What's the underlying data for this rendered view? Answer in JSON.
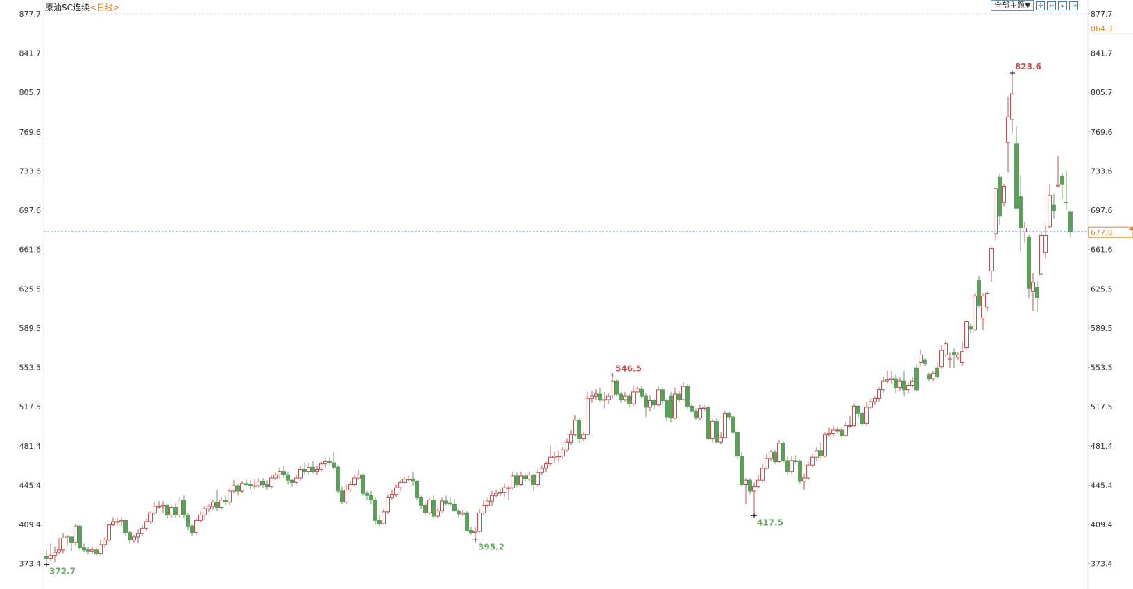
{
  "header": {
    "title": "原油SC连续",
    "period": "<日线>",
    "theme_button": "全部主题▼",
    "toolbar_icons": [
      "crosshair-icon",
      "zoom-range-icon",
      "play-step-icon",
      "jump-end-icon"
    ]
  },
  "colors": {
    "up": "#c0504d",
    "down": "#5b9f5b",
    "up_label": "#c0504d",
    "down_label": "#6aa86a",
    "accent_orange": "#e0892a",
    "current_line": "#3a7ab8"
  },
  "chart_data": {
    "type": "candlestick",
    "ylim": [
      373.4,
      877.7
    ],
    "yticks": [
      877.7,
      841.7,
      805.7,
      769.6,
      733.6,
      697.6,
      661.6,
      625.5,
      589.5,
      553.5,
      517.5,
      481.4,
      445.4,
      409.4,
      373.4
    ],
    "right_marker": "864.3",
    "current_price": 677.8,
    "current_price_label": "677.8",
    "extreme_labels": [
      {
        "index": 1,
        "value": "372.7",
        "kind": "low"
      },
      {
        "index": 104,
        "value": "395.2",
        "kind": "low"
      },
      {
        "index": 137,
        "value": "546.5",
        "kind": "high"
      },
      {
        "index": 171,
        "value": "417.5",
        "kind": "low"
      },
      {
        "index": 233,
        "value": "823.6",
        "kind": "high"
      }
    ],
    "candles_ohlc": [
      [
        380,
        386,
        372.7,
        378
      ],
      [
        378,
        392,
        376,
        381
      ],
      [
        381,
        389,
        375,
        384
      ],
      [
        384,
        397,
        382,
        386
      ],
      [
        386,
        401,
        383,
        397
      ],
      [
        397,
        400,
        390,
        398
      ],
      [
        398,
        399,
        385,
        393
      ],
      [
        393,
        410,
        390,
        408
      ],
      [
        408,
        409,
        386,
        388
      ],
      [
        388,
        392,
        384,
        386
      ],
      [
        386,
        389,
        382,
        385
      ],
      [
        385,
        389,
        383,
        386
      ],
      [
        386,
        388,
        381,
        383
      ],
      [
        383,
        395,
        381,
        391
      ],
      [
        391,
        398,
        388,
        395
      ],
      [
        395,
        410,
        394,
        409
      ],
      [
        409,
        416,
        408,
        412
      ],
      [
        412,
        416,
        409,
        412
      ],
      [
        412,
        416,
        408,
        413
      ],
      [
        413,
        414,
        399,
        402
      ],
      [
        402,
        404,
        392,
        395
      ],
      [
        395,
        400,
        393,
        398
      ],
      [
        398,
        405,
        392,
        401
      ],
      [
        401,
        409,
        399,
        406
      ],
      [
        406,
        415,
        404,
        412
      ],
      [
        412,
        422,
        410,
        420
      ],
      [
        420,
        430,
        418,
        426
      ],
      [
        426,
        431,
        424,
        426
      ],
      [
        426,
        431,
        420,
        427
      ],
      [
        427,
        428,
        415,
        418
      ],
      [
        418,
        427,
        416,
        425
      ],
      [
        425,
        429,
        416,
        418
      ],
      [
        418,
        434,
        416,
        432
      ],
      [
        432,
        436,
        415,
        418
      ],
      [
        418,
        420,
        404,
        408
      ],
      [
        408,
        410,
        399,
        402
      ],
      [
        402,
        415,
        400,
        413
      ],
      [
        413,
        421,
        411,
        418
      ],
      [
        418,
        426,
        414,
        424
      ],
      [
        424,
        428,
        421,
        426
      ],
      [
        426,
        432,
        423,
        430
      ],
      [
        430,
        441,
        422,
        425
      ],
      [
        425,
        434,
        423,
        432
      ],
      [
        432,
        436,
        427,
        430
      ],
      [
        430,
        442,
        427,
        440
      ],
      [
        440,
        450,
        438,
        445
      ],
      [
        445,
        447,
        436,
        440
      ],
      [
        440,
        449,
        438,
        447
      ],
      [
        447,
        451,
        444,
        446
      ],
      [
        446,
        450,
        441,
        445
      ],
      [
        445,
        451,
        442,
        445
      ],
      [
        445,
        452,
        443,
        449
      ],
      [
        449,
        452,
        443,
        446
      ],
      [
        446,
        450,
        441,
        444
      ],
      [
        444,
        455,
        442,
        452
      ],
      [
        452,
        457,
        450,
        455
      ],
      [
        455,
        462,
        451,
        458
      ],
      [
        458,
        463,
        452,
        455
      ],
      [
        455,
        457,
        446,
        450
      ],
      [
        450,
        451,
        444,
        448
      ],
      [
        448,
        455,
        446,
        452
      ],
      [
        452,
        463,
        450,
        460
      ],
      [
        460,
        466,
        455,
        458
      ],
      [
        458,
        466,
        455,
        462
      ],
      [
        462,
        468,
        456,
        458
      ],
      [
        458,
        463,
        455,
        460
      ],
      [
        460,
        468,
        458,
        465
      ],
      [
        465,
        470,
        462,
        467
      ],
      [
        467,
        471,
        464,
        466
      ],
      [
        466,
        476,
        460,
        462
      ],
      [
        462,
        464,
        438,
        440
      ],
      [
        440,
        444,
        428,
        430
      ],
      [
        430,
        446,
        428,
        441
      ],
      [
        441,
        449,
        439,
        446
      ],
      [
        446,
        455,
        444,
        452
      ],
      [
        452,
        460,
        450,
        455
      ],
      [
        455,
        456,
        436,
        438
      ],
      [
        438,
        440,
        432,
        436
      ],
      [
        436,
        440,
        428,
        432
      ],
      [
        432,
        434,
        409,
        413
      ],
      [
        413,
        418,
        408,
        410
      ],
      [
        410,
        424,
        409,
        421
      ],
      [
        421,
        437,
        419,
        434
      ],
      [
        434,
        441,
        432,
        437
      ],
      [
        437,
        446,
        435,
        443
      ],
      [
        443,
        450,
        440,
        448
      ],
      [
        448,
        453,
        446,
        451
      ],
      [
        451,
        454,
        449,
        451
      ],
      [
        451,
        458,
        445,
        449
      ],
      [
        449,
        450,
        432,
        434
      ],
      [
        434,
        436,
        424,
        427
      ],
      [
        427,
        429,
        418,
        420
      ],
      [
        420,
        434,
        418,
        432
      ],
      [
        432,
        436,
        415,
        417
      ],
      [
        417,
        425,
        415,
        422
      ],
      [
        422,
        434,
        420,
        431
      ],
      [
        431,
        436,
        427,
        429
      ],
      [
        429,
        434,
        426,
        428
      ],
      [
        428,
        433,
        421,
        422
      ],
      [
        422,
        424,
        416,
        419
      ],
      [
        419,
        423,
        417,
        420
      ],
      [
        420,
        422,
        403,
        404
      ],
      [
        404,
        407,
        400,
        402
      ],
      [
        402,
        407,
        395.2,
        403
      ],
      [
        403,
        424,
        402,
        420
      ],
      [
        420,
        432,
        418,
        427
      ],
      [
        427,
        434,
        425,
        431
      ],
      [
        431,
        440,
        426,
        436
      ],
      [
        436,
        441,
        434,
        438
      ],
      [
        438,
        441,
        436,
        439
      ],
      [
        439,
        447,
        435,
        443
      ],
      [
        443,
        445,
        432,
        443
      ],
      [
        443,
        458,
        441,
        454
      ],
      [
        454,
        457,
        444,
        446
      ],
      [
        446,
        458,
        445,
        454
      ],
      [
        454,
        456,
        449,
        451
      ],
      [
        451,
        458,
        449,
        455
      ],
      [
        455,
        456,
        440,
        446
      ],
      [
        446,
        460,
        444,
        457
      ],
      [
        457,
        464,
        455,
        461
      ],
      [
        461,
        467,
        457,
        465
      ],
      [
        465,
        482,
        463,
        471
      ],
      [
        471,
        476,
        466,
        472
      ],
      [
        472,
        477,
        467,
        472
      ],
      [
        472,
        481,
        470,
        478
      ],
      [
        478,
        488,
        476,
        485
      ],
      [
        485,
        496,
        482,
        492
      ],
      [
        492,
        510,
        490,
        505
      ],
      [
        505,
        507,
        484,
        488
      ],
      [
        488,
        495,
        486,
        492
      ],
      [
        492,
        531,
        491,
        525
      ],
      [
        525,
        532,
        521,
        527
      ],
      [
        527,
        534,
        524,
        529
      ],
      [
        529,
        535,
        522,
        524
      ],
      [
        524,
        531,
        516,
        524
      ],
      [
        524,
        530,
        520,
        527
      ],
      [
        528,
        546.5,
        525,
        541
      ],
      [
        541,
        543,
        527,
        529
      ],
      [
        529,
        531,
        521,
        524
      ],
      [
        524,
        531,
        522,
        527
      ],
      [
        527,
        529,
        517,
        520
      ],
      [
        520,
        537,
        518,
        531
      ],
      [
        531,
        536,
        530,
        534
      ],
      [
        534,
        536,
        525,
        527
      ],
      [
        527,
        530,
        508,
        517
      ],
      [
        517,
        528,
        513,
        523
      ],
      [
        523,
        525,
        515,
        519
      ],
      [
        519,
        536,
        518,
        533
      ],
      [
        533,
        535,
        520,
        523
      ],
      [
        523,
        525,
        504,
        508
      ],
      [
        527,
        531,
        503,
        507
      ],
      [
        507,
        535,
        506,
        529
      ],
      [
        529,
        532,
        522,
        524
      ],
      [
        524,
        540,
        523,
        536
      ],
      [
        536,
        538,
        516,
        518
      ],
      [
        518,
        520,
        512,
        513
      ],
      [
        513,
        516,
        505,
        507
      ],
      [
        507,
        519,
        505,
        516
      ],
      [
        516,
        519,
        513,
        517
      ],
      [
        517,
        518,
        487,
        488
      ],
      [
        488,
        506,
        485,
        504
      ],
      [
        504,
        507,
        484,
        485
      ],
      [
        485,
        494,
        483,
        489
      ],
      [
        489,
        513,
        488,
        511
      ],
      [
        511,
        513,
        505,
        508
      ],
      [
        508,
        510,
        493,
        494
      ],
      [
        494,
        495,
        470,
        472
      ],
      [
        472,
        476,
        444,
        446
      ],
      [
        446,
        452,
        428,
        450
      ],
      [
        450,
        452,
        437,
        440
      ],
      [
        440,
        448,
        417.5,
        444
      ],
      [
        444,
        455,
        443,
        450
      ],
      [
        450,
        465,
        448,
        461
      ],
      [
        461,
        474,
        459,
        470
      ],
      [
        470,
        478,
        468,
        476
      ],
      [
        476,
        478,
        465,
        467
      ],
      [
        467,
        487,
        466,
        484
      ],
      [
        484,
        486,
        466,
        468
      ],
      [
        468,
        472,
        455,
        458
      ],
      [
        458,
        472,
        456,
        468
      ],
      [
        468,
        473,
        465,
        467
      ],
      [
        467,
        469,
        447,
        449
      ],
      [
        449,
        456,
        441,
        452
      ],
      [
        452,
        467,
        450,
        464
      ],
      [
        464,
        474,
        462,
        471
      ],
      [
        471,
        480,
        468,
        477
      ],
      [
        477,
        485,
        470,
        472
      ],
      [
        472,
        494,
        471,
        492
      ],
      [
        492,
        498,
        490,
        493
      ],
      [
        493,
        500,
        490,
        496
      ],
      [
        496,
        499,
        493,
        496
      ],
      [
        496,
        499,
        489,
        491
      ],
      [
        491,
        503,
        490,
        500
      ],
      [
        500,
        509,
        498,
        500
      ],
      [
        500,
        520,
        499,
        518
      ],
      [
        518,
        519,
        507,
        511
      ],
      [
        511,
        513,
        500,
        502
      ],
      [
        502,
        522,
        500,
        517
      ],
      [
        517,
        525,
        515,
        522
      ],
      [
        522,
        527,
        519,
        525
      ],
      [
        525,
        535,
        522,
        533
      ],
      [
        533,
        545,
        530,
        541
      ],
      [
        541,
        550,
        539,
        542
      ],
      [
        542,
        550,
        538,
        543
      ],
      [
        543,
        547,
        530,
        535
      ],
      [
        535,
        544,
        532,
        541
      ],
      [
        541,
        550,
        527,
        533
      ],
      [
        533,
        540,
        530,
        537
      ],
      [
        537,
        545,
        535,
        541
      ],
      [
        553,
        556,
        532,
        533
      ],
      [
        558,
        570,
        555,
        565
      ],
      [
        560,
        562,
        555,
        557
      ],
      [
        547,
        549,
        541,
        543
      ],
      [
        543,
        550,
        541,
        548
      ],
      [
        553,
        558,
        543,
        545
      ],
      [
        554,
        574,
        552,
        569
      ],
      [
        565,
        578,
        563,
        575
      ],
      [
        561,
        567,
        553,
        561.5
      ],
      [
        567,
        571,
        553,
        565
      ],
      [
        563,
        567,
        560,
        565
      ],
      [
        558,
        577,
        555,
        568
      ],
      [
        572,
        597,
        570,
        595.5
      ],
      [
        591,
        594,
        584,
        589
      ],
      [
        588,
        621,
        587,
        619
      ],
      [
        633.6,
        637,
        608,
        610.3
      ],
      [
        598.7,
        621,
        588,
        619
      ],
      [
        608.6,
        623,
        605,
        621
      ],
      [
        642,
        664,
        632,
        662.3
      ],
      [
        676,
        718,
        670,
        717.5
      ],
      [
        728,
        731,
        684,
        692
      ],
      [
        704.8,
        722,
        701,
        719.6
      ],
      [
        759.9,
        801.3,
        732.3,
        783.3
      ],
      [
        781,
        823.6,
        768,
        804.5
      ],
      [
        758.9,
        774.8,
        699,
        699.4
      ],
      [
        710,
        730,
        659.6,
        681.4
      ],
      [
        677.8,
        687,
        668,
        681.4
      ],
      [
        673,
        675,
        617,
        626.2
      ],
      [
        623,
        640,
        605,
        631.5
      ],
      [
        627.3,
        633,
        604,
        617.7
      ],
      [
        639,
        678,
        639,
        674.4
      ],
      [
        659,
        683.5,
        653,
        674.4
      ],
      [
        682.5,
        721.7,
        681,
        711.1
      ],
      [
        702.6,
        712,
        690,
        697.3
      ],
      [
        720,
        747.2,
        719,
        721
      ],
      [
        729.2,
        732,
        708,
        721.7
      ],
      [
        705,
        734.5,
        698,
        704.8
      ],
      [
        696.3,
        698,
        673,
        677.8
      ]
    ]
  }
}
